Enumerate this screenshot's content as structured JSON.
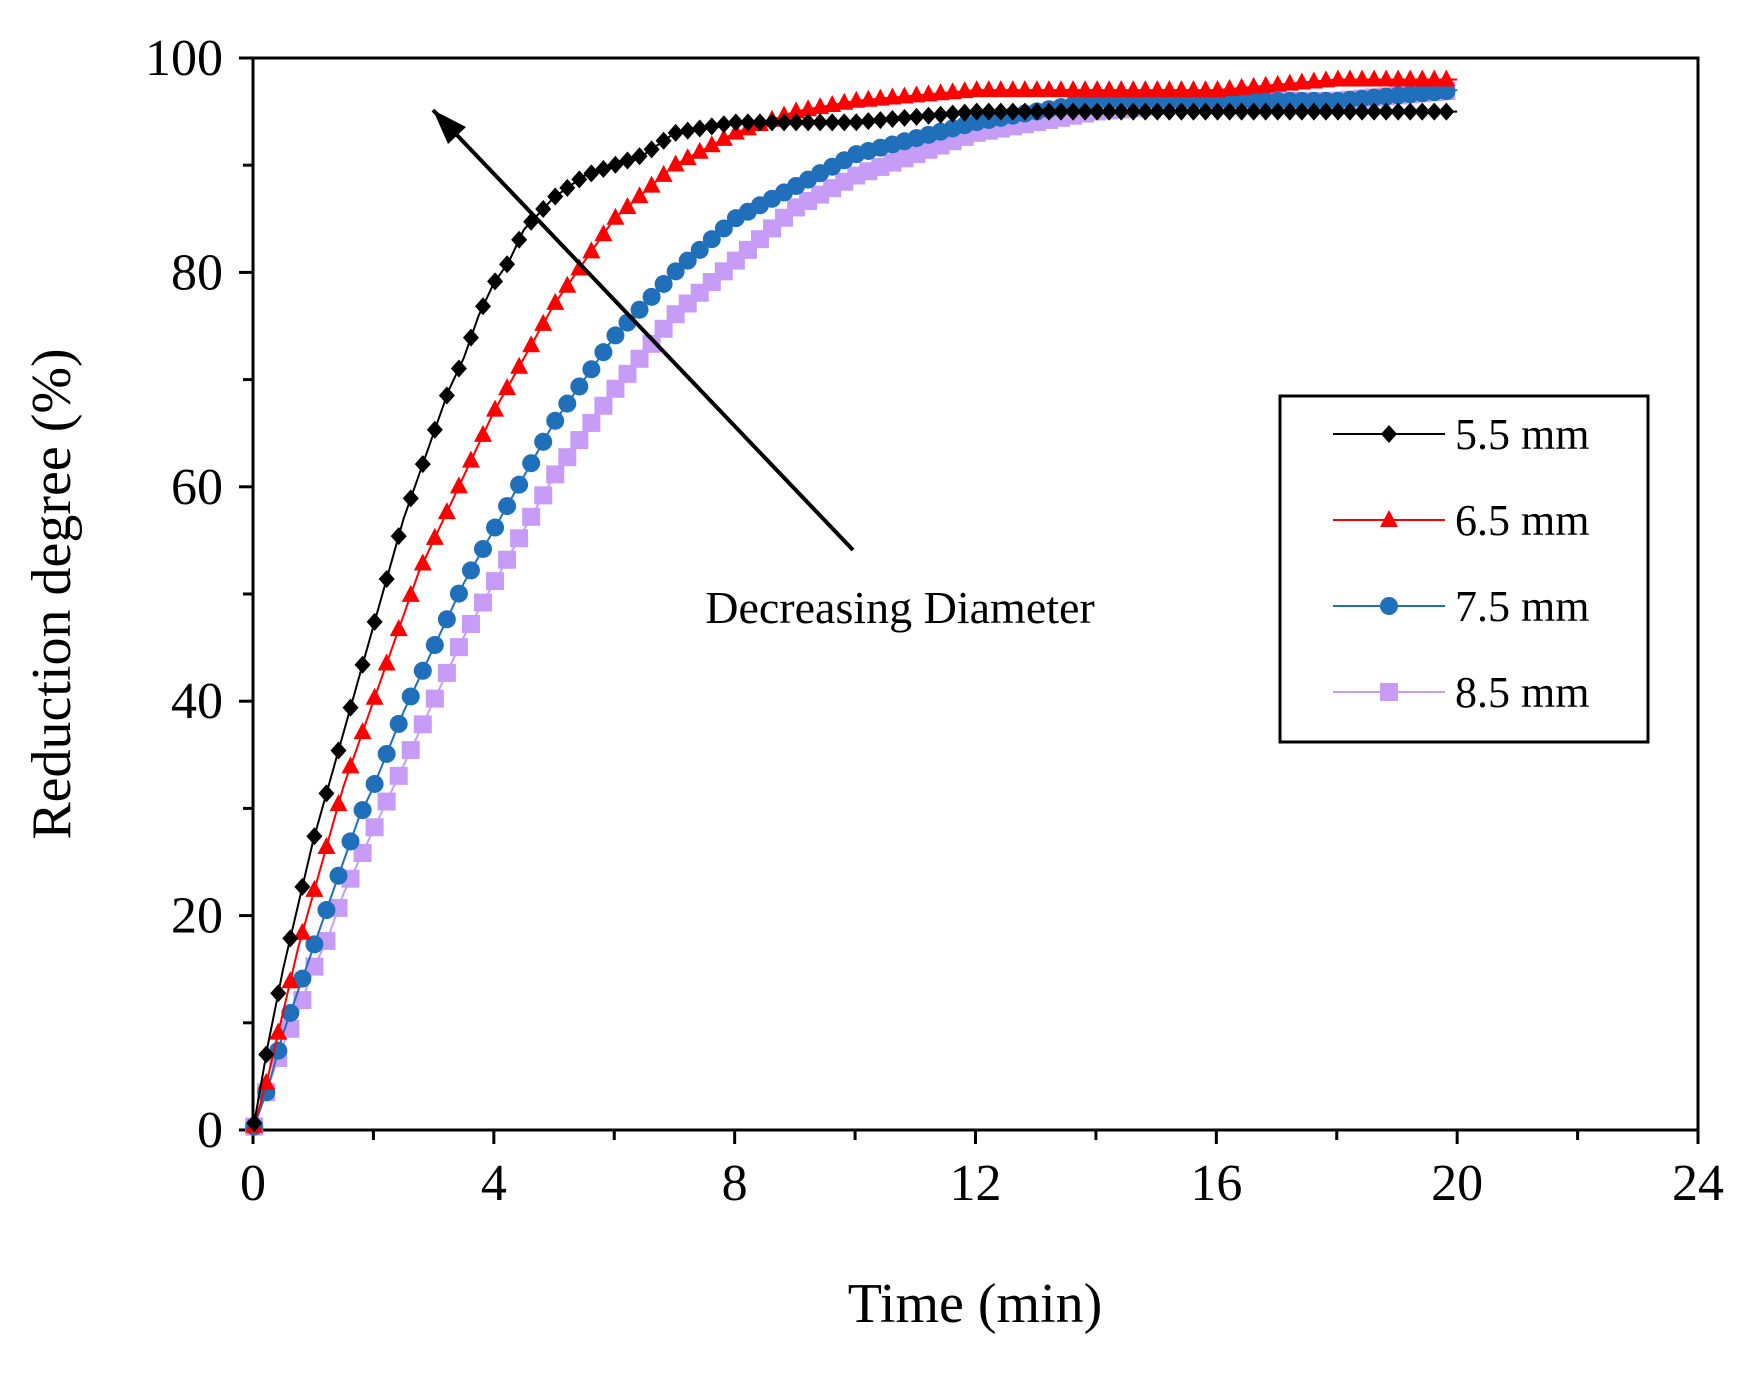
{
  "chart_data": {
    "type": "line",
    "title": "",
    "xlabel": "Time (min)",
    "ylabel": "Reduction degree (%)",
    "xlim": [
      0,
      24
    ],
    "ylim": [
      0,
      100
    ],
    "xticks": [
      0,
      4,
      8,
      12,
      16,
      20,
      24
    ],
    "yticks": [
      0,
      20,
      40,
      60,
      80,
      100
    ],
    "grid": false,
    "legend_position": "right",
    "annotation": "Decreasing Diameter",
    "series": [
      {
        "name": "5.5 mm",
        "color": "#000000",
        "marker": "diamond",
        "x": [
          0,
          0.25,
          0.5,
          0.75,
          1,
          1.25,
          1.5,
          1.75,
          2,
          2.25,
          2.5,
          2.75,
          3,
          3.25,
          3.5,
          3.75,
          4,
          4.25,
          4.5,
          5,
          5.5,
          6,
          6.5,
          7,
          8,
          10,
          12,
          14,
          16,
          18,
          20
        ],
        "y": [
          0,
          8,
          15,
          21,
          27,
          32,
          37,
          42,
          47,
          52,
          57,
          61,
          65,
          69,
          72,
          76,
          79,
          81,
          84,
          87,
          89,
          90,
          91,
          93,
          94,
          94,
          95,
          95,
          95,
          95,
          95
        ]
      },
      {
        "name": "6.5 mm",
        "color": "#ff0000",
        "marker": "triangle",
        "x": [
          0,
          0.25,
          0.5,
          0.75,
          1,
          1.25,
          1.5,
          1.75,
          2,
          2.25,
          2.5,
          2.75,
          3,
          3.25,
          3.5,
          3.75,
          4,
          4.5,
          5,
          5.5,
          6,
          7,
          8,
          9,
          10,
          12,
          14,
          16,
          18,
          20
        ],
        "y": [
          0,
          5,
          11,
          17,
          22,
          27,
          32,
          36,
          40,
          44,
          48,
          52,
          55,
          58,
          61,
          64,
          67,
          72,
          77,
          81,
          85,
          90,
          93,
          95,
          96,
          97,
          97,
          97,
          98,
          98
        ]
      },
      {
        "name": "7.5 mm",
        "color": "#1f6fba",
        "marker": "circle",
        "x": [
          0,
          0.25,
          0.5,
          0.75,
          1,
          1.25,
          1.5,
          1.75,
          2,
          2.5,
          3,
          3.5,
          4,
          4.5,
          5,
          5.5,
          6,
          7,
          8,
          9,
          10,
          12,
          14,
          16,
          18,
          20
        ],
        "y": [
          0,
          4,
          9,
          13,
          17,
          21,
          25,
          29,
          32,
          39,
          45,
          51,
          56,
          61,
          66,
          70,
          74,
          80,
          85,
          88,
          91,
          94,
          96,
          96,
          96,
          97
        ]
      },
      {
        "name": "8.5 mm",
        "color": "#c69cf7",
        "marker": "square",
        "x": [
          0,
          0.25,
          0.5,
          0.75,
          1,
          1.25,
          1.5,
          1.75,
          2,
          2.5,
          3,
          3.5,
          4,
          4.5,
          5,
          5.5,
          6,
          7,
          8,
          9,
          10,
          12,
          14,
          16,
          18,
          20
        ],
        "y": [
          0,
          4,
          8,
          11,
          15,
          18,
          22,
          25,
          28,
          34,
          40,
          46,
          51,
          56,
          61,
          65,
          69,
          76,
          81,
          86,
          89,
          93,
          95,
          96,
          96,
          97
        ]
      }
    ]
  }
}
